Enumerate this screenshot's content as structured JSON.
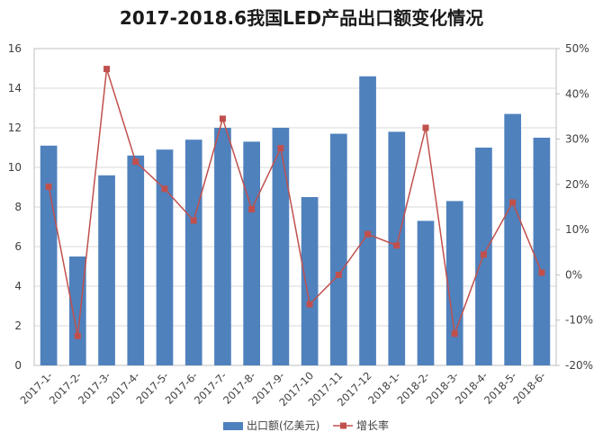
{
  "chart_data": {
    "type": "bar",
    "title": "2017-2018.6我国LED产品出口额变化情况",
    "categories": [
      "2017-1-",
      "2017-2-",
      "2017-3-",
      "2017-4-",
      "2017-5-",
      "2017-6-",
      "2017-7-",
      "2017-8-",
      "2017-9-",
      "2017-10",
      "2017-11",
      "2017-12",
      "2018-1-",
      "2018-2-",
      "2018-3-",
      "2018-4-",
      "2018-5-",
      "2018-6-"
    ],
    "y_left": {
      "min": 0,
      "max": 16,
      "ticks": [
        "0",
        "2",
        "4",
        "6",
        "8",
        "10",
        "12",
        "14",
        "16"
      ]
    },
    "y_right": {
      "min": -20,
      "max": 50,
      "ticks": [
        "-20%",
        "-10%",
        "0%",
        "10%",
        "20%",
        "30%",
        "40%",
        "50%"
      ]
    },
    "grid": true,
    "legend_position": "bottom",
    "series": [
      {
        "name": "出口额(亿美元)",
        "type": "bar",
        "axis": "left",
        "color": "#4f81bd",
        "values": [
          11.1,
          5.5,
          9.6,
          10.6,
          10.9,
          11.4,
          12.0,
          11.3,
          12.0,
          8.5,
          11.7,
          14.6,
          11.8,
          7.3,
          8.3,
          11.0,
          12.7,
          11.5
        ]
      },
      {
        "name": "增长率",
        "type": "line",
        "axis": "right",
        "color": "#c0504d",
        "values": [
          19.5,
          -13.5,
          45.5,
          25.0,
          19.0,
          12.0,
          34.5,
          14.5,
          28.0,
          -6.5,
          0.0,
          9.0,
          6.5,
          32.5,
          -13.0,
          4.5,
          16.0,
          0.5
        ]
      }
    ]
  }
}
